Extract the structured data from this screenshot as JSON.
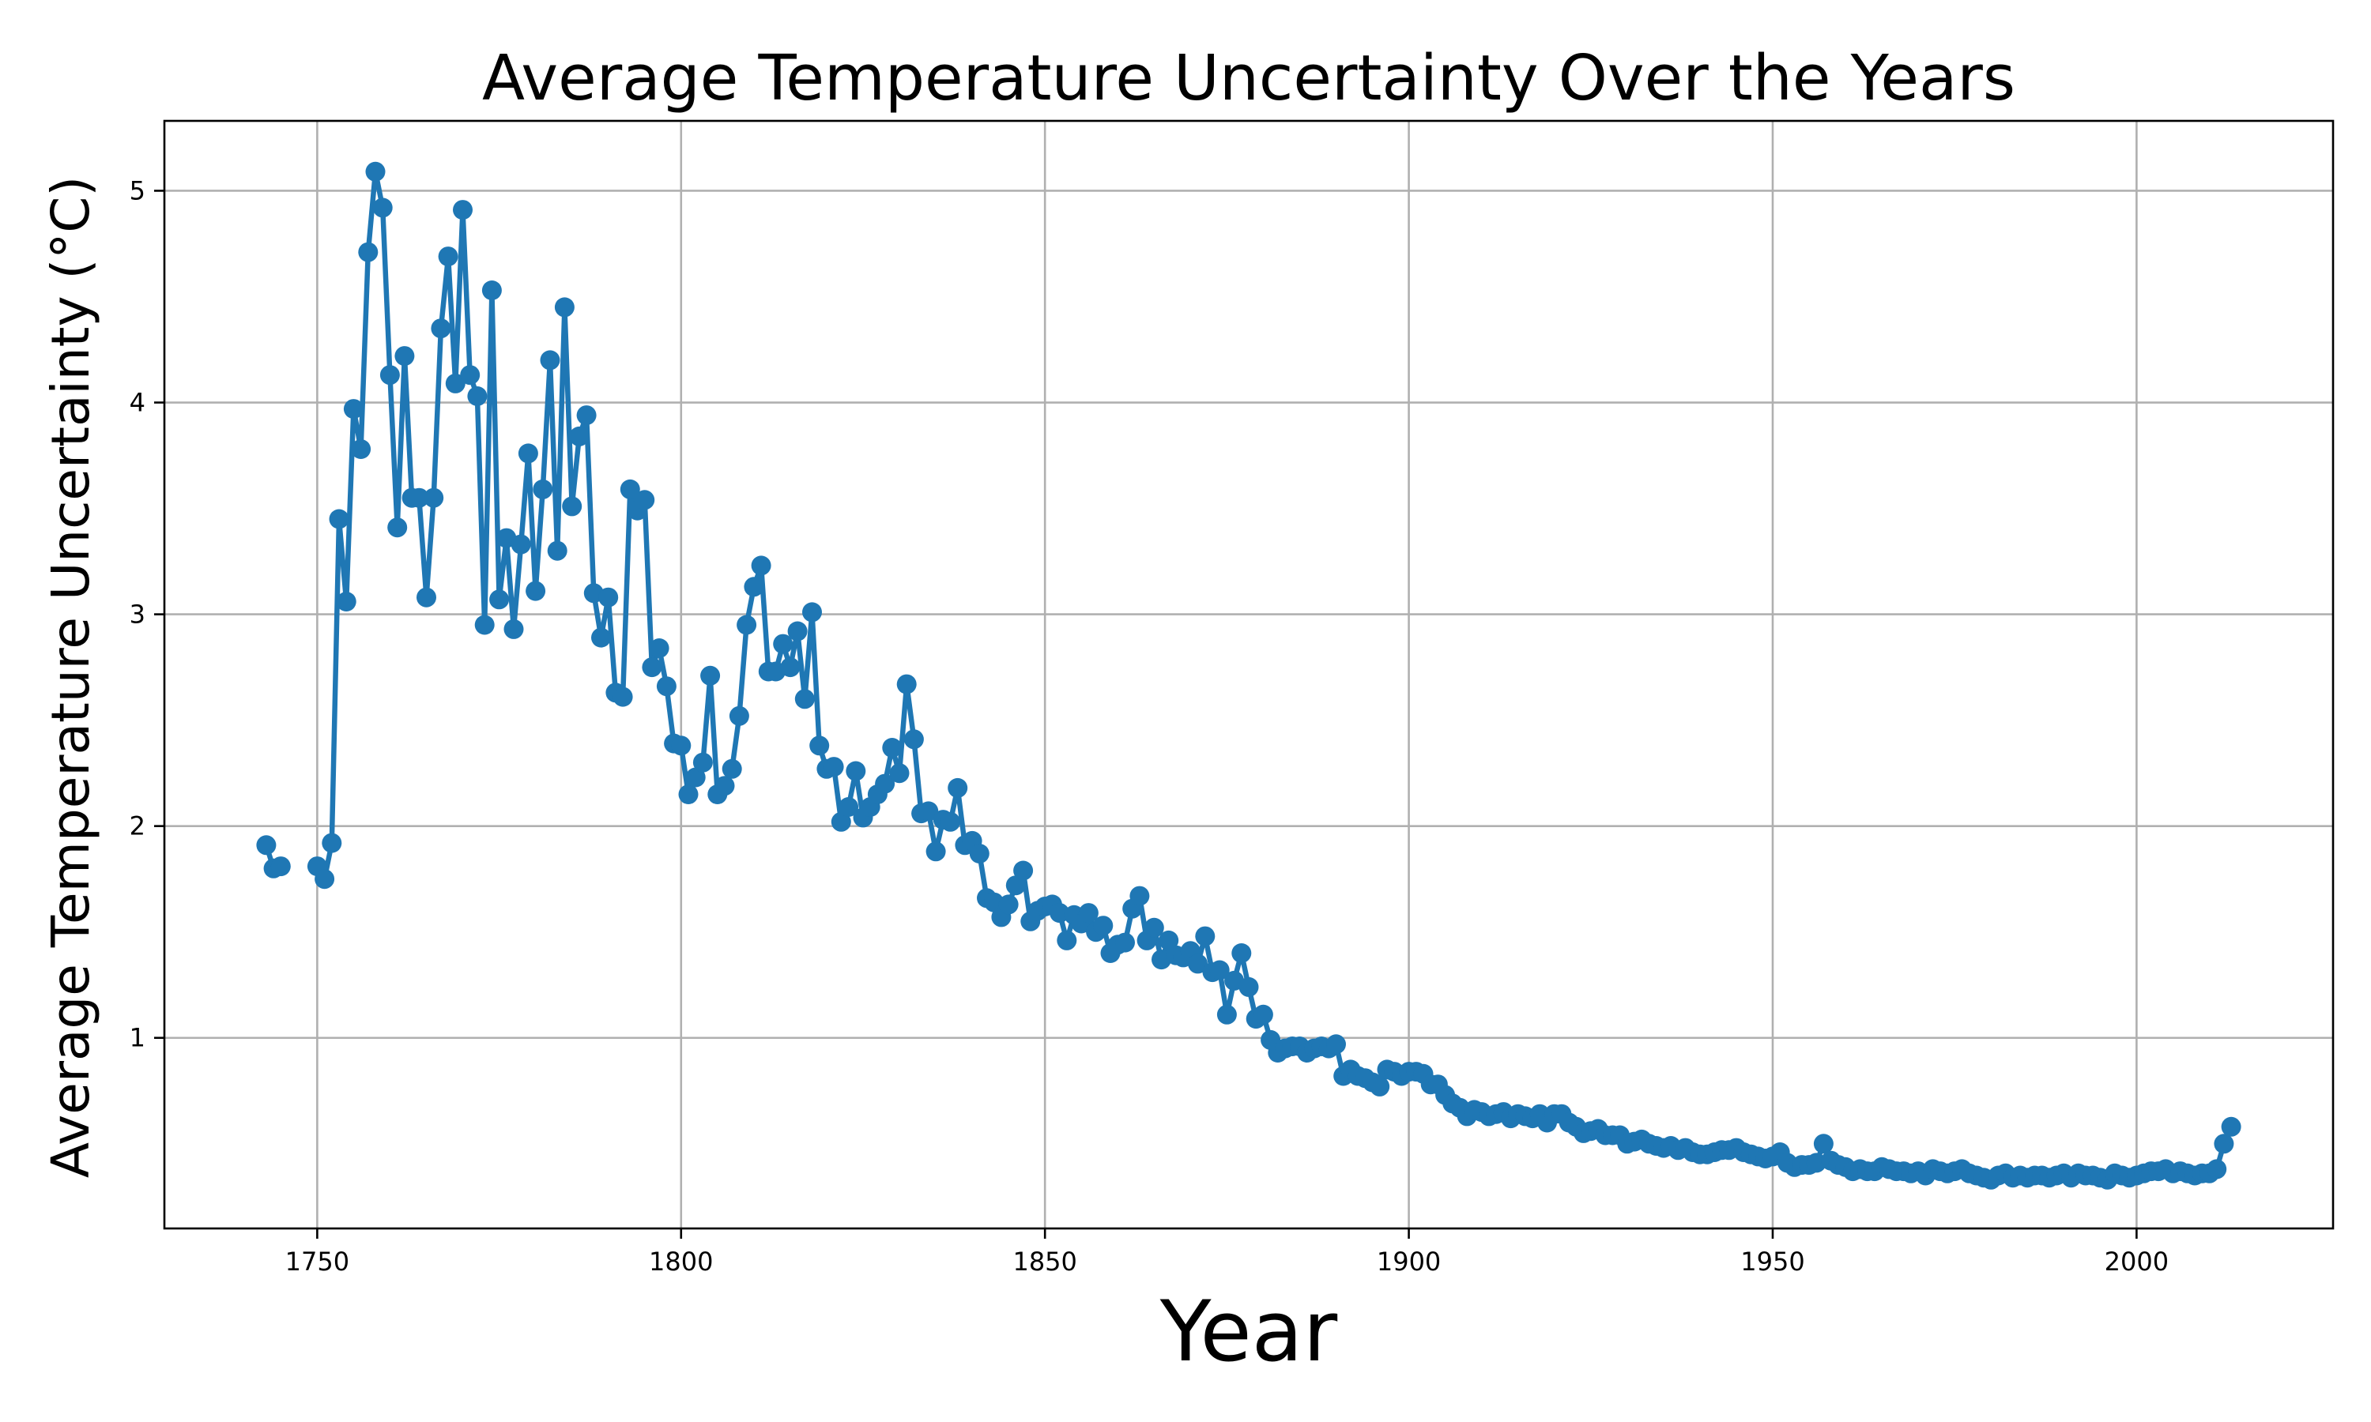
{
  "chart_data": {
    "type": "line",
    "title": "Average Temperature Uncertainty Over the Years",
    "xlabel": "Year",
    "ylabel": "Average Temperature Uncertainty (°C)",
    "xlim": [
      1729,
      2027
    ],
    "ylim": [
      0.1,
      5.33
    ],
    "xticks": [
      1750,
      1800,
      1850,
      1900,
      1950,
      2000
    ],
    "yticks": [
      1,
      2,
      3,
      4,
      5
    ],
    "grid": true,
    "legend": "none",
    "series": [
      {
        "color": "#1f77b4",
        "marker": "circle",
        "x": [
          1743,
          1744,
          1745,
          1750,
          1751,
          1752,
          1753,
          1754,
          1755,
          1756,
          1757,
          1758,
          1759,
          1760,
          1761,
          1762,
          1763,
          1764,
          1765,
          1766,
          1767,
          1768,
          1769,
          1770,
          1771,
          1772,
          1773,
          1774,
          1775,
          1776,
          1777,
          1778,
          1779,
          1780,
          1781,
          1782,
          1783,
          1784,
          1785,
          1786,
          1787,
          1788,
          1789,
          1790,
          1791,
          1792,
          1793,
          1794,
          1795,
          1796,
          1797,
          1798,
          1799,
          1800,
          1801,
          1802,
          1803,
          1804,
          1805,
          1806,
          1807,
          1808,
          1809,
          1810,
          1811,
          1812,
          1813,
          1814,
          1815,
          1816,
          1817,
          1818,
          1819,
          1820,
          1821,
          1822,
          1823,
          1824,
          1825,
          1826,
          1827,
          1828,
          1829,
          1830,
          1831,
          1832,
          1833,
          1834,
          1835,
          1836,
          1837,
          1838,
          1839,
          1840,
          1841,
          1842,
          1843,
          1844,
          1845,
          1846,
          1847,
          1848,
          1849,
          1850,
          1851,
          1852,
          1853,
          1854,
          1855,
          1856,
          1857,
          1858,
          1859,
          1860,
          1861,
          1862,
          1863,
          1864,
          1865,
          1866,
          1867,
          1868,
          1869,
          1870,
          1871,
          1872,
          1873,
          1874,
          1875,
          1876,
          1877,
          1878,
          1879,
          1880,
          1881,
          1882,
          1883,
          1884,
          1885,
          1886,
          1887,
          1888,
          1889,
          1890,
          1891,
          1892,
          1893,
          1894,
          1895,
          1896,
          1897,
          1898,
          1899,
          1900,
          1901,
          1902,
          1903,
          1904,
          1905,
          1906,
          1907,
          1908,
          1909,
          1910,
          1911,
          1912,
          1913,
          1914,
          1915,
          1916,
          1917,
          1918,
          1919,
          1920,
          1921,
          1922,
          1923,
          1924,
          1925,
          1926,
          1927,
          1928,
          1929,
          1930,
          1931,
          1932,
          1933,
          1934,
          1935,
          1936,
          1937,
          1938,
          1939,
          1940,
          1941,
          1942,
          1943,
          1944,
          1945,
          1946,
          1947,
          1948,
          1949,
          1950,
          1951,
          1952,
          1953,
          1954,
          1955,
          1956,
          1957,
          1958,
          1959,
          1960,
          1961,
          1962,
          1963,
          1964,
          1965,
          1966,
          1967,
          1968,
          1969,
          1970,
          1971,
          1972,
          1973,
          1974,
          1975,
          1976,
          1977,
          1978,
          1979,
          1980,
          1981,
          1982,
          1983,
          1984,
          1985,
          1986,
          1987,
          1988,
          1989,
          1990,
          1991,
          1992,
          1993,
          1994,
          1995,
          1996,
          1997,
          1998,
          1999,
          2000,
          2001,
          2002,
          2003,
          2004,
          2005,
          2006,
          2007,
          2008,
          2009,
          2010,
          2011,
          2012,
          2013
        ],
        "y": [
          1.91,
          1.8,
          1.81,
          1.81,
          1.75,
          1.92,
          3.45,
          3.06,
          3.97,
          3.78,
          4.71,
          5.09,
          4.92,
          4.13,
          3.41,
          4.22,
          3.55,
          3.55,
          3.08,
          3.55,
          4.35,
          4.69,
          4.09,
          4.91,
          4.13,
          4.03,
          2.95,
          4.53,
          3.07,
          3.36,
          2.93,
          3.33,
          3.76,
          3.11,
          3.59,
          4.2,
          3.3,
          4.45,
          3.51,
          3.84,
          3.94,
          3.1,
          2.89,
          3.08,
          2.63,
          2.61,
          3.59,
          3.49,
          3.54,
          2.75,
          2.84,
          2.66,
          2.39,
          2.38,
          2.15,
          2.23,
          2.3,
          2.71,
          2.15,
          2.19,
          2.27,
          2.52,
          2.95,
          3.13,
          3.23,
          2.73,
          2.73,
          2.86,
          2.75,
          2.92,
          2.6,
          3.01,
          2.38,
          2.27,
          2.28,
          2.02,
          2.09,
          2.26,
          2.04,
          2.09,
          2.15,
          2.2,
          2.37,
          2.25,
          2.67,
          2.41,
          2.06,
          2.07,
          1.88,
          2.03,
          2.02,
          2.18,
          1.91,
          1.93,
          1.87,
          1.66,
          1.64,
          1.57,
          1.63,
          1.72,
          1.79,
          1.55,
          1.6,
          1.62,
          1.63,
          1.59,
          1.46,
          1.58,
          1.54,
          1.59,
          1.5,
          1.53,
          1.4,
          1.44,
          1.45,
          1.61,
          1.67,
          1.46,
          1.52,
          1.37,
          1.46,
          1.39,
          1.38,
          1.41,
          1.35,
          1.48,
          1.31,
          1.32,
          1.11,
          1.27,
          1.4,
          1.24,
          1.09,
          1.11,
          0.99,
          0.93,
          0.95,
          0.96,
          0.96,
          0.93,
          0.95,
          0.96,
          0.95,
          0.97,
          0.82,
          0.85,
          0.82,
          0.81,
          0.79,
          0.77,
          0.85,
          0.84,
          0.82,
          0.84,
          0.84,
          0.83,
          0.78,
          0.78,
          0.73,
          0.69,
          0.67,
          0.63,
          0.66,
          0.65,
          0.63,
          0.64,
          0.65,
          0.62,
          0.64,
          0.63,
          0.62,
          0.64,
          0.6,
          0.64,
          0.64,
          0.6,
          0.58,
          0.55,
          0.56,
          0.57,
          0.54,
          0.54,
          0.54,
          0.5,
          0.51,
          0.52,
          0.5,
          0.49,
          0.48,
          0.49,
          0.47,
          0.48,
          0.46,
          0.45,
          0.45,
          0.46,
          0.47,
          0.47,
          0.48,
          0.46,
          0.45,
          0.44,
          0.43,
          0.44,
          0.46,
          0.41,
          0.39,
          0.4,
          0.4,
          0.41,
          0.5,
          0.42,
          0.4,
          0.39,
          0.37,
          0.38,
          0.37,
          0.37,
          0.39,
          0.38,
          0.37,
          0.37,
          0.36,
          0.37,
          0.35,
          0.38,
          0.37,
          0.36,
          0.37,
          0.38,
          0.36,
          0.35,
          0.34,
          0.33,
          0.35,
          0.36,
          0.34,
          0.35,
          0.34,
          0.35,
          0.35,
          0.34,
          0.35,
          0.36,
          0.34,
          0.36,
          0.35,
          0.35,
          0.34,
          0.33,
          0.36,
          0.35,
          0.34,
          0.35,
          0.36,
          0.37,
          0.37,
          0.38,
          0.36,
          0.37,
          0.36,
          0.35,
          0.36,
          0.36,
          0.38,
          0.5,
          0.58
        ]
      }
    ]
  }
}
